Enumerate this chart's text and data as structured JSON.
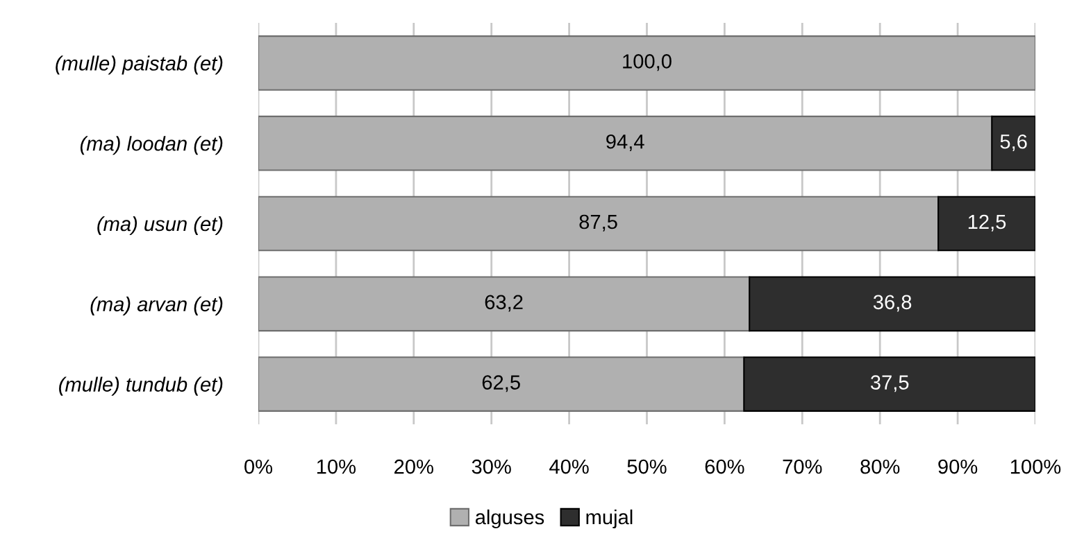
{
  "chart_data": {
    "type": "bar",
    "orientation": "horizontal",
    "stacked": true,
    "categories": [
      "(mulle) paistab (et)",
      "(ma) loodan (et)",
      "(ma) usun (et)",
      "(ma) arvan (et)",
      "(mulle) tundub (et)"
    ],
    "series": [
      {
        "name": "alguses",
        "color": "#b0b0b0",
        "values": [
          100.0,
          94.4,
          87.5,
          63.2,
          62.5
        ],
        "value_labels": [
          "100,0",
          "94,4",
          "87,5",
          "63,2",
          "62,5"
        ]
      },
      {
        "name": "mujal",
        "color": "#2e2e2e",
        "values": [
          null,
          5.6,
          12.5,
          36.8,
          37.5
        ],
        "value_labels": [
          null,
          "5,6",
          "12,5",
          "36,8",
          "37,5"
        ]
      }
    ],
    "xlim": [
      0,
      100
    ],
    "xticks": [
      {
        "value": 0,
        "label": "0%"
      },
      {
        "value": 10,
        "label": "10%"
      },
      {
        "value": 20,
        "label": "20%"
      },
      {
        "value": 30,
        "label": "30%"
      },
      {
        "value": 40,
        "label": "40%"
      },
      {
        "value": 50,
        "label": "50%"
      },
      {
        "value": 60,
        "label": "60%"
      },
      {
        "value": 70,
        "label": "70%"
      },
      {
        "value": 80,
        "label": "80%"
      },
      {
        "value": 90,
        "label": "90%"
      },
      {
        "value": 100,
        "label": "100%"
      }
    ],
    "grid": "x",
    "legend": "bottom"
  }
}
